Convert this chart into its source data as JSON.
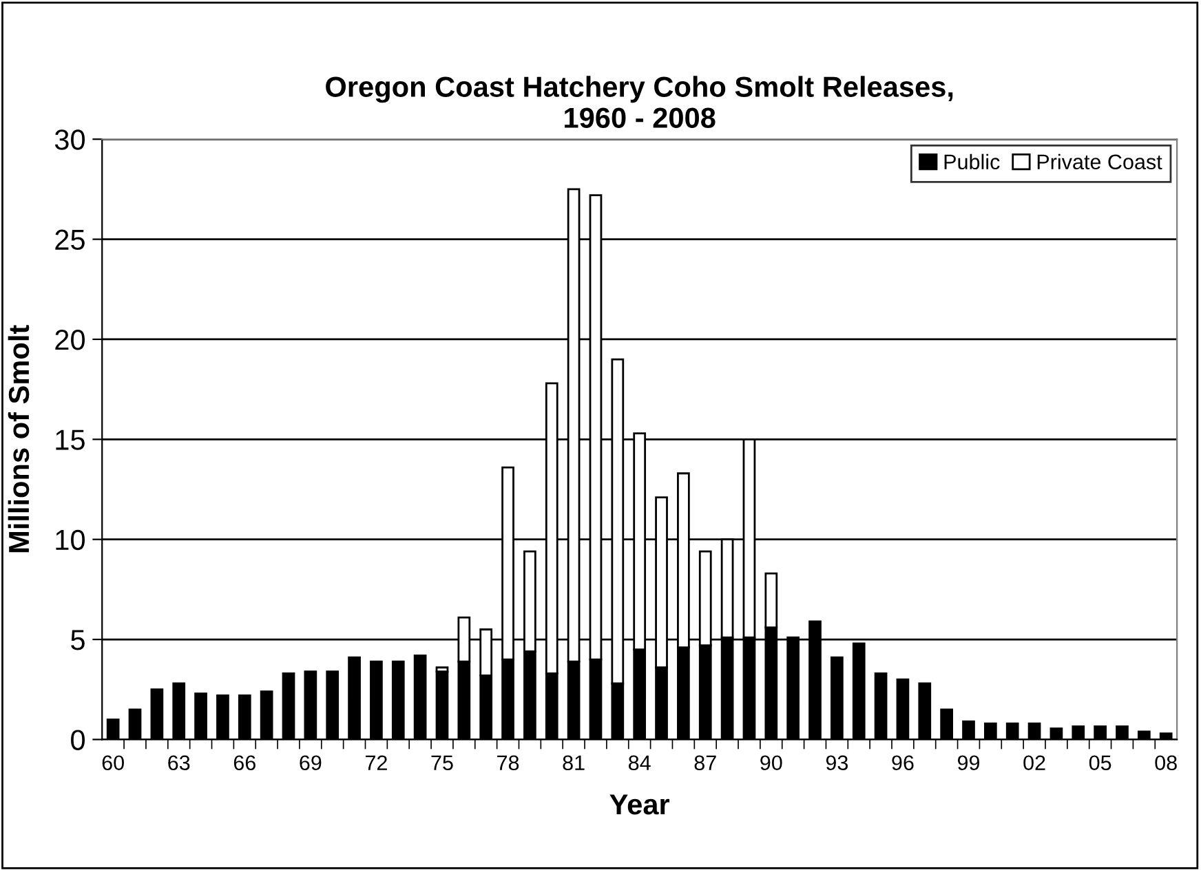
{
  "chart_data": {
    "type": "bar",
    "stacked": true,
    "title": "Oregon Coast Hatchery Coho Smolt Releases,\n1960 - 2008",
    "xlabel": "Year",
    "ylabel": "Millions of Smolt",
    "categories": [
      "60",
      null,
      null,
      "63",
      null,
      null,
      "66",
      null,
      null,
      "69",
      null,
      null,
      "72",
      null,
      null,
      "75",
      null,
      null,
      "78",
      null,
      null,
      "81",
      null,
      null,
      "84",
      null,
      null,
      "87",
      null,
      null,
      "90",
      null,
      null,
      "93",
      null,
      null,
      "96",
      null,
      null,
      "99",
      null,
      null,
      "02",
      null,
      null,
      "05",
      null,
      null,
      "08"
    ],
    "series": [
      {
        "name": "Public",
        "color": "#000000",
        "values": [
          1.0,
          1.5,
          2.5,
          2.8,
          2.3,
          2.2,
          2.2,
          2.4,
          3.3,
          3.4,
          3.4,
          4.1,
          3.9,
          3.9,
          4.2,
          3.4,
          3.9,
          3.2,
          4.0,
          4.4,
          3.3,
          3.9,
          4.0,
          2.8,
          4.5,
          3.6,
          4.6,
          4.7,
          5.1,
          5.1,
          5.6,
          5.1,
          5.9,
          4.1,
          4.8,
          3.3,
          3.0,
          2.8,
          1.5,
          0.9,
          0.8,
          0.8,
          0.8,
          0.55,
          0.65,
          0.65,
          0.65,
          0.4,
          0.3
        ]
      },
      {
        "name": "Private Coast",
        "color": "#ffffff",
        "values": [
          null,
          null,
          null,
          null,
          null,
          null,
          null,
          null,
          null,
          null,
          null,
          null,
          null,
          null,
          null,
          0.2,
          2.2,
          2.3,
          9.6,
          5.0,
          14.5,
          23.6,
          23.2,
          16.2,
          10.8,
          8.5,
          8.7,
          4.7,
          4.9,
          9.9,
          2.7,
          null,
          null,
          null,
          null,
          null,
          null,
          null,
          null,
          null,
          null,
          null,
          null,
          null,
          null,
          null,
          null,
          null,
          null
        ]
      }
    ],
    "ylim": [
      0,
      30
    ],
    "yticks": [
      0,
      5,
      10,
      15,
      20,
      25,
      30
    ],
    "grid": "y",
    "legend": "top right"
  }
}
